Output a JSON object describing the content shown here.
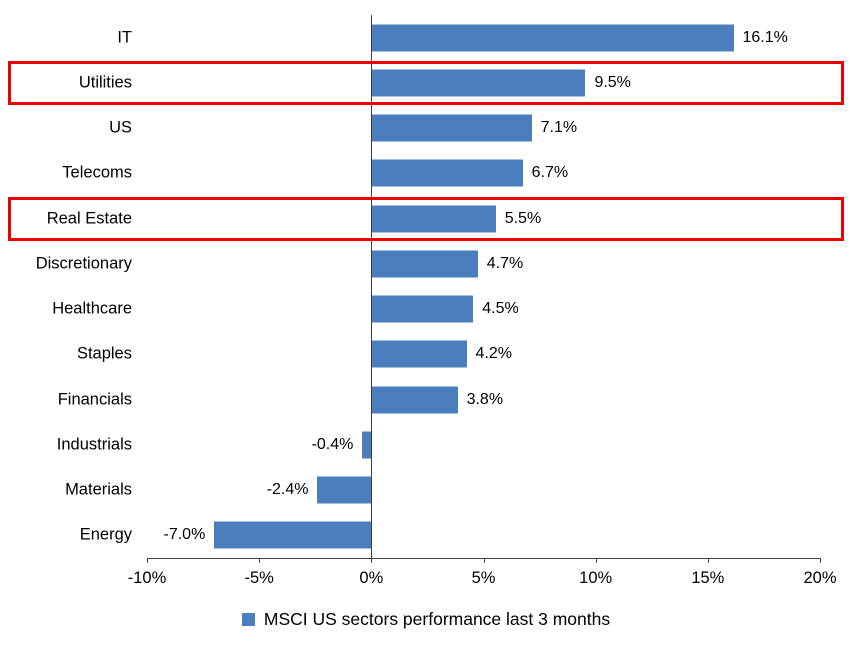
{
  "chart_data": {
    "type": "bar",
    "orientation": "horizontal",
    "title": "",
    "xlabel": "",
    "ylabel": "",
    "categories": [
      "IT",
      "Utilities",
      "US",
      "Telecoms",
      "Real Estate",
      "Discretionary",
      "Healthcare",
      "Staples",
      "Financials",
      "Industrials",
      "Materials",
      "Energy"
    ],
    "values": [
      16.1,
      9.5,
      7.1,
      6.7,
      5.5,
      4.7,
      4.5,
      4.2,
      3.8,
      -0.4,
      -2.4,
      -7.0
    ],
    "value_labels": [
      "16.1%",
      "9.5%",
      "7.1%",
      "6.7%",
      "5.5%",
      "4.7%",
      "4.5%",
      "4.2%",
      "3.8%",
      "-0.4%",
      "-2.4%",
      "-7.0%"
    ],
    "highlighted_categories": [
      "Utilities",
      "Real Estate"
    ],
    "highlight_indices": [
      1,
      4
    ],
    "xlim": [
      -10,
      20
    ],
    "x_ticks": [
      {
        "value": -10,
        "label": "-10%"
      },
      {
        "value": -5,
        "label": "-5%"
      },
      {
        "value": 0,
        "label": "0%"
      },
      {
        "value": 5,
        "label": "5%"
      },
      {
        "value": 10,
        "label": "10%"
      },
      {
        "value": 15,
        "label": "15%"
      },
      {
        "value": 20,
        "label": "20%"
      }
    ],
    "grid": false,
    "legend": {
      "position": "bottom",
      "label": "MSCI US sectors performance last 3 months"
    },
    "colors": {
      "bar": "#4A7EBD",
      "highlight_box": "#EE0000",
      "axis": "#404040",
      "text": "#000000"
    }
  }
}
